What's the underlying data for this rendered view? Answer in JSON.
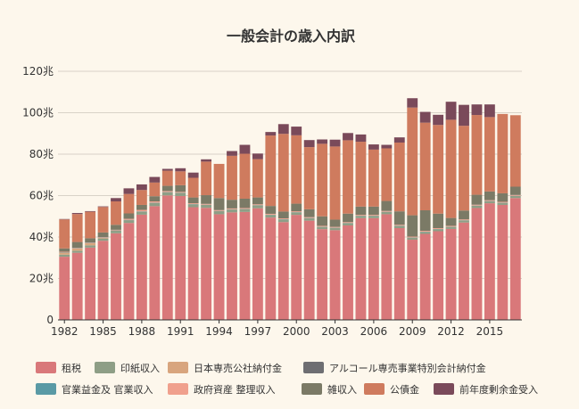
{
  "chart_data": {
    "type": "bar",
    "stacked": true,
    "title": "一般会計の歳入内訳",
    "xlabel": "",
    "ylabel": "",
    "y_unit": "兆",
    "ylim": [
      0,
      120
    ],
    "yticks": [
      0,
      20,
      40,
      60,
      80,
      100,
      120
    ],
    "ytick_labels": [
      "0",
      "20兆",
      "40兆",
      "60兆",
      "80兆",
      "100兆",
      "120兆"
    ],
    "grid": true,
    "legend_position": "bottom",
    "categories": [
      "1982",
      "1983",
      "1984",
      "1985",
      "1986",
      "1987",
      "1988",
      "1989",
      "1990",
      "1991",
      "1992",
      "1993",
      "1994",
      "1995",
      "1996",
      "1997",
      "1998",
      "1999",
      "2000",
      "2001",
      "2002",
      "2003",
      "2004",
      "2005",
      "2006",
      "2007",
      "2008",
      "2009",
      "2010",
      "2011",
      "2012",
      "2013",
      "2014",
      "2015",
      "2016",
      "2017"
    ],
    "xtick_labels": [
      "1982",
      "1985",
      "1988",
      "1991",
      "1994",
      "1997",
      "2000",
      "2003",
      "2006",
      "2009",
      "2012",
      "2015"
    ],
    "series": [
      {
        "name": "租税",
        "color": "#d9787a",
        "values": [
          30.5,
          32.4,
          34.9,
          38.2,
          41.8,
          46.8,
          50.8,
          54.9,
          60.1,
          59.8,
          54.4,
          54.1,
          51.0,
          51.9,
          52.1,
          53.9,
          49.4,
          47.2,
          50.7,
          47.9,
          43.8,
          43.3,
          45.6,
          49.1,
          49.1,
          51.0,
          44.3,
          38.7,
          41.5,
          42.8,
          43.9,
          47.0,
          54.0,
          56.3,
          55.5,
          58.8
        ]
      },
      {
        "name": "印紙収入",
        "color": "#8e9e86",
        "values": [
          1.0,
          1.0,
          1.1,
          1.1,
          1.2,
          1.3,
          1.4,
          1.5,
          1.5,
          1.5,
          1.4,
          1.4,
          1.5,
          1.4,
          1.4,
          1.4,
          1.3,
          1.3,
          1.2,
          1.2,
          1.1,
          1.1,
          1.1,
          1.1,
          1.1,
          1.1,
          1.1,
          1.0,
          1.0,
          1.0,
          1.0,
          1.0,
          1.1,
          1.0,
          1.0,
          1.0
        ]
      },
      {
        "name": "日本専売公社納付金",
        "color": "#d8a57e",
        "values": [
          1.0,
          1.0,
          1.0,
          0.3,
          0,
          0,
          0,
          0,
          0,
          0,
          0,
          0,
          0,
          0,
          0,
          0,
          0,
          0,
          0,
          0,
          0,
          0,
          0,
          0,
          0,
          0,
          0,
          0,
          0,
          0,
          0,
          0,
          0,
          0,
          0,
          0
        ]
      },
      {
        "name": "アルコール専売事業特別会計納付金",
        "color": "#6e6e72",
        "values": [
          0.1,
          0.1,
          0.1,
          0.1,
          0.1,
          0.1,
          0.1,
          0.1,
          0,
          0,
          0,
          0,
          0,
          0,
          0,
          0,
          0,
          0,
          0,
          0,
          0,
          0,
          0,
          0,
          0,
          0,
          0,
          0,
          0,
          0,
          0,
          0,
          0,
          0,
          0,
          0
        ]
      },
      {
        "name": "官業益金及 官業収入",
        "color": "#5a9aa5",
        "values": [
          0.1,
          0.1,
          0.1,
          0.1,
          0.1,
          0.1,
          0.1,
          0.1,
          0.1,
          0.1,
          0.1,
          0.1,
          0.1,
          0.1,
          0.1,
          0.1,
          0.1,
          0.1,
          0.1,
          0.1,
          0.1,
          0.1,
          0.1,
          0.1,
          0.1,
          0.1,
          0.1,
          0.1,
          0.1,
          0.1,
          0.1,
          0.1,
          0.1,
          0.1,
          0.1,
          0.1
        ]
      },
      {
        "name": "政府資産 整理収入",
        "color": "#f0a08d",
        "values": [
          0.2,
          0.2,
          0.2,
          0.2,
          0.3,
          0.5,
          0.7,
          0.6,
          0.5,
          0.4,
          0.4,
          0.4,
          0.4,
          0.4,
          0.4,
          0.4,
          0.4,
          0.4,
          0.4,
          0.4,
          0.4,
          0.4,
          0.4,
          0.4,
          0.4,
          0.4,
          0.4,
          0.4,
          0.4,
          0.4,
          0.4,
          0.4,
          0.4,
          0.4,
          0.4,
          0.4
        ]
      },
      {
        "name": "雑収入",
        "color": "#7b7a66",
        "values": [
          1.6,
          2.8,
          2.0,
          2.2,
          2.4,
          2.6,
          2.4,
          2.5,
          2.5,
          3.2,
          2.8,
          4.2,
          5.8,
          4.2,
          4.5,
          3.3,
          3.8,
          3.3,
          3.7,
          3.8,
          4.6,
          3.5,
          4.1,
          4.0,
          4.0,
          4.8,
          6.5,
          10.3,
          9.9,
          7.0,
          3.8,
          4.3,
          4.8,
          4.2,
          4.1,
          4.0
        ]
      },
      {
        "name": "公債金",
        "color": "#cf7b5e",
        "values": [
          14.0,
          13.5,
          12.8,
          12.3,
          11.3,
          9.4,
          7.2,
          6.6,
          7.3,
          6.7,
          9.5,
          16.2,
          16.5,
          21.2,
          21.7,
          18.5,
          34.0,
          37.5,
          33.0,
          30.0,
          35.0,
          35.3,
          35.4,
          31.3,
          27.5,
          25.4,
          33.2,
          52.0,
          42.3,
          42.8,
          47.4,
          40.9,
          38.5,
          35.9,
          38.3,
          34.5
        ]
      },
      {
        "name": "前年度剰余金受入",
        "color": "#7a4a5a",
        "values": [
          0.2,
          0.5,
          0.3,
          0.3,
          1.6,
          2.7,
          2.7,
          2.7,
          0.9,
          1.5,
          2.5,
          1.1,
          0,
          2.3,
          4.3,
          2.7,
          1.7,
          4.7,
          4.2,
          3.4,
          2.1,
          3.3,
          3.5,
          3.5,
          2.5,
          1.7,
          2.5,
          4.5,
          5.2,
          4.9,
          8.7,
          10.1,
          5.1,
          6.1,
          0,
          0
        ]
      }
    ]
  }
}
